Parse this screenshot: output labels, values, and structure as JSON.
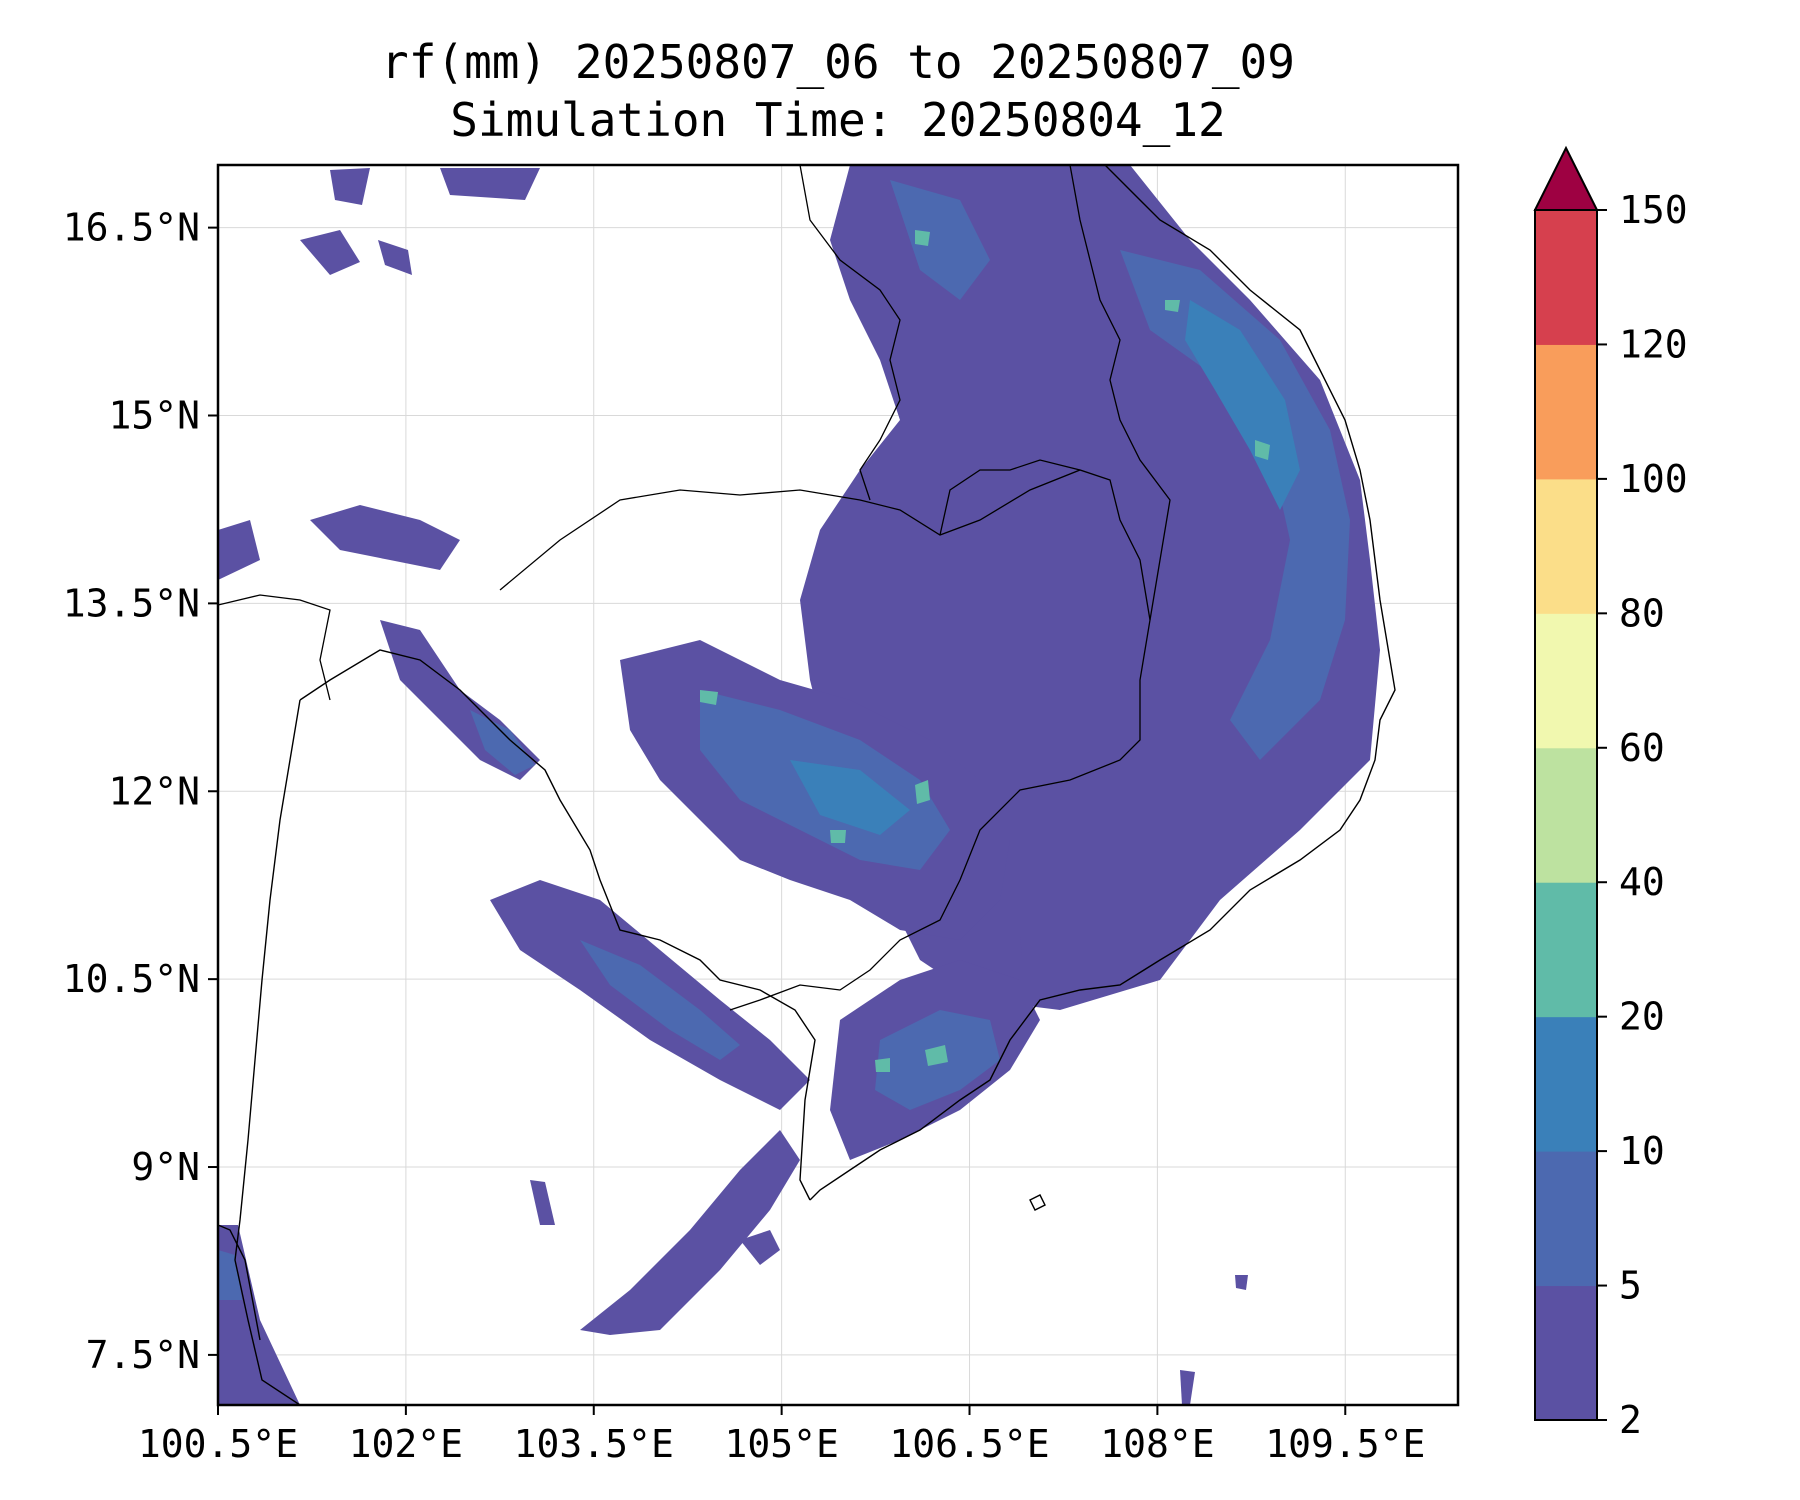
{
  "title": {
    "line1": "rf(mm) 20250807_06 to 20250807_09",
    "line2": "Simulation Time: 20250804_12"
  },
  "axes": {
    "x_ticks": [
      "100.5°E",
      "102°E",
      "103.5°E",
      "105°E",
      "106.5°E",
      "108°E",
      "109.5°E"
    ],
    "x_values": [
      100.5,
      102,
      103.5,
      105,
      106.5,
      108,
      109.5
    ],
    "y_ticks": [
      "16.5°N",
      "15°N",
      "13.5°N",
      "12°N",
      "10.5°N",
      "9°N",
      "7.5°N"
    ],
    "y_values": [
      16.5,
      15,
      13.5,
      12,
      10.5,
      9,
      7.5
    ],
    "lon_range": [
      100.5,
      110.4
    ],
    "lat_range": [
      7.1,
      17.0
    ],
    "grid": true
  },
  "colorbar": {
    "levels": [
      "2",
      "5",
      "10",
      "20",
      "40",
      "60",
      "80",
      "100",
      "120",
      "150"
    ],
    "colors": [
      "#5b51a3",
      "#4c69b0",
      "#3a80b9",
      "#60bba8",
      "#bde2a0",
      "#f1f8af",
      "#fbde89",
      "#f99d5b",
      "#d6404e",
      "#9e0142"
    ],
    "extend": "max"
  },
  "chart_data": {
    "type": "heatmap",
    "title": "rf(mm) 20250807_06 to 20250807_09",
    "subtitle": "Simulation Time: 20250804_12",
    "variable": "rf(mm)",
    "x_range": [
      100.5,
      110.4
    ],
    "y_range": [
      7.1,
      17.0
    ],
    "color_levels": [
      2,
      5,
      10,
      20,
      40,
      60,
      80,
      100,
      120,
      150
    ],
    "grid": true
  }
}
